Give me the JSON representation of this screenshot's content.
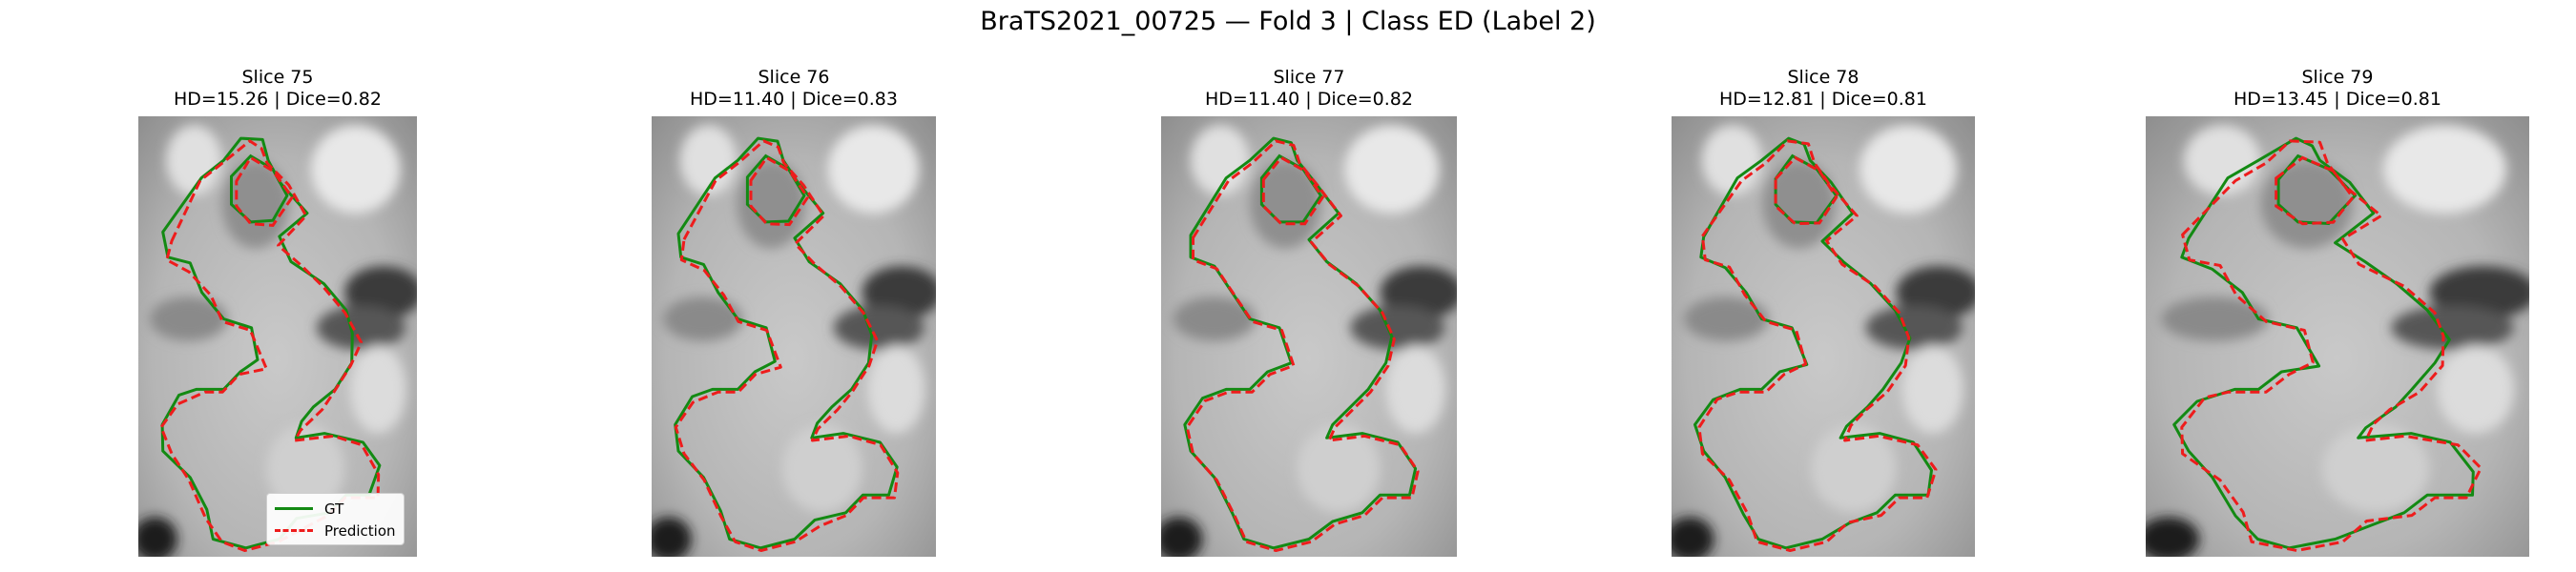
{
  "figure": {
    "title": "BraTS2021_00725 — Fold 3 | Class ED (Label 2)"
  },
  "panels": [
    {
      "slice": "Slice 75",
      "metrics": "HD=15.26 | Dice=0.82"
    },
    {
      "slice": "Slice 76",
      "metrics": "HD=11.40 | Dice=0.83"
    },
    {
      "slice": "Slice 77",
      "metrics": "HD=11.40 | Dice=0.82"
    },
    {
      "slice": "Slice 78",
      "metrics": "HD=12.81 | Dice=0.81"
    },
    {
      "slice": "Slice 79",
      "metrics": "HD=13.45 | Dice=0.81"
    }
  ],
  "legend": {
    "gt_label": "GT",
    "pred_label": "Prediction"
  },
  "colors": {
    "gt": "#138a13",
    "prediction": "#ee1c1c"
  }
}
